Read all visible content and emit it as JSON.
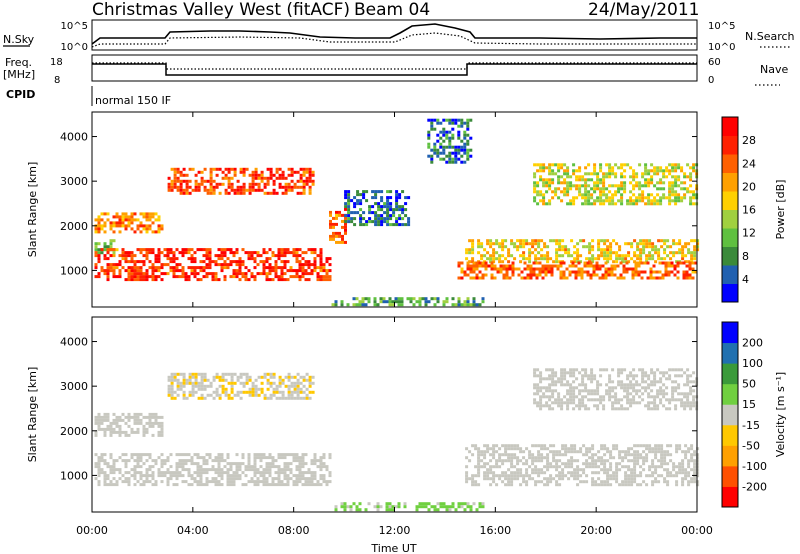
{
  "header": {
    "title": "Christmas Valley West (fitACF)",
    "beam": "Beam 04",
    "date": "24/May/2011"
  },
  "panels": {
    "nsky_label": "N.Sky",
    "nsky_ticks": [
      "10^5",
      "10^0"
    ],
    "nsearch_label": "N.Search",
    "nsearch_ticks": [
      "10^5",
      "10^0"
    ],
    "freq_label_1": "Freq.",
    "freq_label_2": "[MHz]",
    "freq_ticks": [
      "18",
      "8"
    ],
    "nave_label": "Nave",
    "nave_ticks": [
      "60",
      "0"
    ],
    "cpid_label": "CPID",
    "cpid_value": "normal 150 IF"
  },
  "chart_data": [
    {
      "type": "heatmap",
      "title": "",
      "xlabel": "Time UT",
      "ylabel": "Slant Range [km]",
      "x_ticks": [
        "00:00",
        "04:00",
        "08:00",
        "12:00",
        "16:00",
        "20:00",
        "00:00"
      ],
      "x_range_hours": [
        0,
        24
      ],
      "y_ticks": [
        1000,
        2000,
        3000,
        4000
      ],
      "ylim": [
        180,
        4550
      ],
      "colorbar": {
        "label": "Power [dB]",
        "ticks": [
          "28",
          "24",
          "20",
          "16",
          "12",
          "8",
          "4"
        ],
        "range": [
          0,
          32
        ],
        "colors": [
          "#0000ff",
          "#2060b0",
          "#3a8a3a",
          "#5fc040",
          "#a0d040",
          "#ffd000",
          "#ffa000",
          "#ff6000",
          "#ff2000",
          "#ff0000"
        ]
      },
      "regions": [
        {
          "t": [
            0.1,
            2.8
          ],
          "r": [
            1850,
            2300
          ],
          "power": 22
        },
        {
          "t": [
            0.1,
            1.0
          ],
          "r": [
            1400,
            1700
          ],
          "power": 14
        },
        {
          "t": [
            3.0,
            8.8
          ],
          "r": [
            2700,
            3300
          ],
          "power": 26
        },
        {
          "t": [
            0.1,
            9.5
          ],
          "r": [
            800,
            1500
          ],
          "power": 27
        },
        {
          "t": [
            9.4,
            10.0
          ],
          "r": [
            1600,
            2400
          ],
          "power": 24
        },
        {
          "t": [
            10.0,
            12.5
          ],
          "r": [
            2000,
            2800
          ],
          "power": 6
        },
        {
          "t": [
            14.8,
            24.0
          ],
          "r": [
            1200,
            1700
          ],
          "power": 18
        },
        {
          "t": [
            14.5,
            24.0
          ],
          "r": [
            800,
            1200
          ],
          "power": 24
        },
        {
          "t": [
            17.5,
            24.0
          ],
          "r": [
            2500,
            3400
          ],
          "power": 16
        },
        {
          "t": [
            13.3,
            15.0
          ],
          "r": [
            3400,
            4400
          ],
          "power": 6
        },
        {
          "t": [
            9.5,
            15.5
          ],
          "r": [
            200,
            400
          ],
          "power": 10
        }
      ]
    },
    {
      "type": "heatmap",
      "title": "",
      "xlabel": "Time UT",
      "ylabel": "Slant Range [km]",
      "x_ticks": [
        "00:00",
        "04:00",
        "08:00",
        "12:00",
        "16:00",
        "20:00",
        "00:00"
      ],
      "x_range_hours": [
        0,
        24
      ],
      "y_ticks": [
        1000,
        2000,
        3000,
        4000
      ],
      "ylim": [
        180,
        4550
      ],
      "colorbar": {
        "label": "Velocity [m s⁻¹]",
        "ticks": [
          "200",
          "100",
          "50",
          "15",
          "-15",
          "-50",
          "-100",
          "-200"
        ],
        "range": [
          -250,
          250
        ],
        "colors": [
          "#ff0000",
          "#ff5000",
          "#ffa000",
          "#ffc800",
          "#c8c8c0",
          "#70d040",
          "#3a9a3a",
          "#2070b0",
          "#0000ff"
        ]
      },
      "regions": [
        {
          "t": [
            0.1,
            2.8
          ],
          "r": [
            1900,
            2400
          ],
          "velocity": 0
        },
        {
          "t": [
            3.0,
            8.8
          ],
          "r": [
            2700,
            3300
          ],
          "velocity": -20
        },
        {
          "t": [
            0.1,
            9.5
          ],
          "r": [
            800,
            1500
          ],
          "velocity": 0
        },
        {
          "t": [
            14.8,
            24.0
          ],
          "r": [
            800,
            1700
          ],
          "velocity": 0
        },
        {
          "t": [
            17.5,
            24.0
          ],
          "r": [
            2500,
            3400
          ],
          "velocity": 0
        },
        {
          "t": [
            9.5,
            15.5
          ],
          "r": [
            200,
            400
          ],
          "velocity": 40
        }
      ]
    }
  ]
}
